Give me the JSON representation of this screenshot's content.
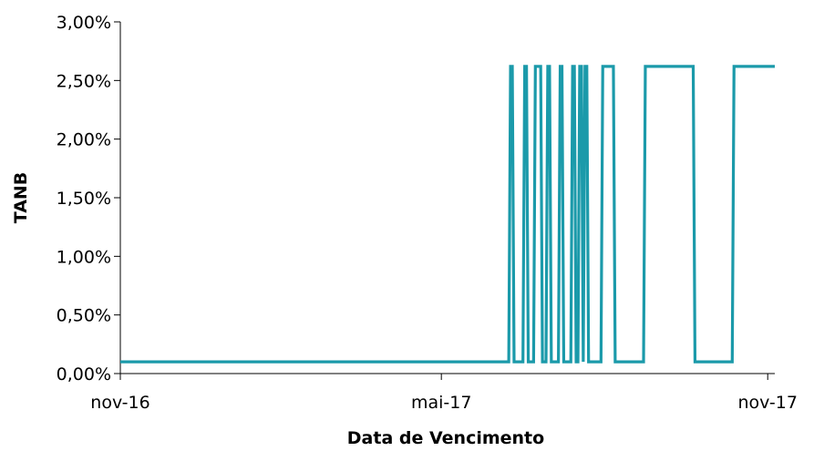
{
  "chart_data": {
    "type": "line",
    "title": "",
    "xlabel": "Data de Vencimento",
    "ylabel": "TANB",
    "ylim": [
      0,
      0.03
    ],
    "xlim": [
      "2016-11-01",
      "2017-11-05"
    ],
    "y_ticks": [
      0,
      0.005,
      0.01,
      0.015,
      0.02,
      0.025,
      0.03
    ],
    "y_tick_labels": [
      "0,00%",
      "0,50%",
      "1,00%",
      "1,50%",
      "2,00%",
      "2,50%",
      "3,00%"
    ],
    "x_ticks": [
      "2016-11-01",
      "2017-05-01",
      "2017-11-01"
    ],
    "x_tick_labels": [
      "nov-16",
      "mai-17",
      "nov-17"
    ],
    "grid": false,
    "legend": "none",
    "color": "#1b9aaa",
    "series": [
      {
        "x": [
          "2016-11-01",
          "2017-06-08",
          "2017-06-09",
          "2017-06-10",
          "2017-06-11",
          "2017-06-12",
          "2017-06-16",
          "2017-06-17",
          "2017-06-18",
          "2017-06-19",
          "2017-06-22",
          "2017-06-23",
          "2017-06-24",
          "2017-06-25",
          "2017-06-26",
          "2017-06-27",
          "2017-06-29",
          "2017-06-30",
          "2017-07-01",
          "2017-07-02",
          "2017-07-03",
          "2017-07-06",
          "2017-07-07",
          "2017-07-08",
          "2017-07-09",
          "2017-07-10",
          "2017-07-13",
          "2017-07-14",
          "2017-07-15",
          "2017-07-16",
          "2017-07-17",
          "2017-07-18",
          "2017-07-19",
          "2017-07-20",
          "2017-07-21",
          "2017-07-22",
          "2017-07-23",
          "2017-07-24",
          "2017-07-25",
          "2017-07-30",
          "2017-07-31",
          "2017-08-05",
          "2017-08-06",
          "2017-08-07",
          "2017-08-08",
          "2017-08-23",
          "2017-08-24",
          "2017-09-20",
          "2017-09-21",
          "2017-10-12",
          "2017-10-13",
          "2017-11-05"
        ],
        "values": [
          0.001,
          0.001,
          0.0262,
          0.0262,
          0.001,
          0.001,
          0.001,
          0.0262,
          0.0262,
          0.001,
          0.001,
          0.0262,
          0.0262,
          0.0262,
          0.0262,
          0.001,
          0.001,
          0.0262,
          0.0262,
          0.001,
          0.001,
          0.001,
          0.0262,
          0.0262,
          0.001,
          0.001,
          0.001,
          0.0262,
          0.0262,
          0.001,
          0.001,
          0.0262,
          0.0262,
          0.001,
          0.0262,
          0.0262,
          0.001,
          0.001,
          0.001,
          0.001,
          0.0262,
          0.0262,
          0.0262,
          0.001,
          0.001,
          0.001,
          0.0262,
          0.0262,
          0.001,
          0.001,
          0.0262,
          0.0262
        ]
      }
    ]
  }
}
